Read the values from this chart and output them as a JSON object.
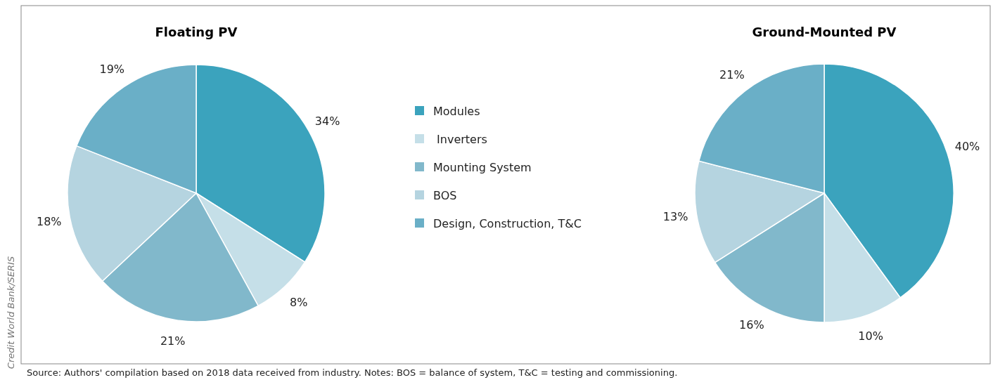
{
  "chart_data": [
    {
      "type": "pie",
      "title": "Floating PV",
      "categories": [
        "Modules",
        " Inverters",
        "Mounting System",
        "BOS",
        "Design, Construction, T&C"
      ],
      "values": [
        34,
        8,
        21,
        18,
        19
      ],
      "colors": [
        "#3ba3bd",
        "#c5dfe8",
        "#81b8cb",
        "#b5d4e0",
        "#6aafc7"
      ],
      "value_labels": [
        "34%",
        "8%",
        "21%",
        "18%",
        "19%"
      ],
      "legend": "right",
      "annotations": [
        "Source: Authors' compilation based on 2018 data received from industry. Notes: BOS = balance of system, T&C = testing and commissioning.",
        "Credit World Bank/SERIS"
      ]
    },
    {
      "type": "pie",
      "title": "Ground-Mounted PV",
      "categories": [
        null,
        null,
        null,
        null,
        null
      ],
      "values": [
        40,
        10,
        16,
        13,
        21
      ],
      "colors": [
        "#3ba3bd",
        "#c5dfe8",
        "#81b8cb",
        "#b5d4e0",
        "#6aafc7"
      ],
      "value_labels": [
        "40%",
        "10%",
        "16%",
        "13%",
        "21%"
      ]
    }
  ]
}
